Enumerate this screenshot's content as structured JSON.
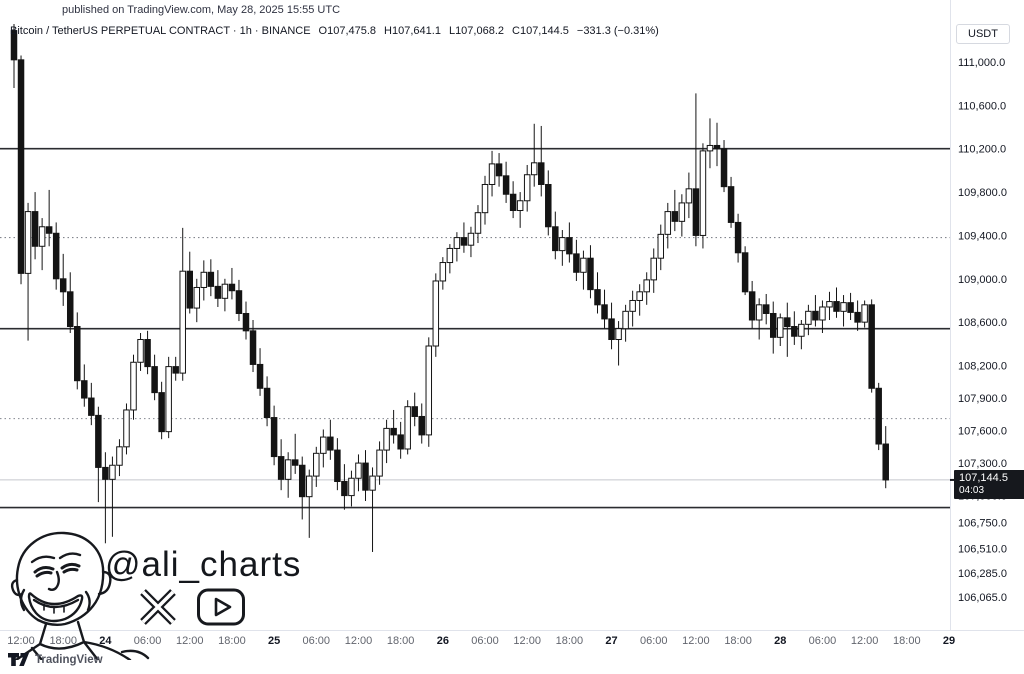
{
  "published_note": {
    "text": "published on TradingView.com, May 28, 2025 15:55 UTC"
  },
  "header": {
    "symbol": "Bitcoin / TetherUS PERPETUAL CONTRACT · 1h · BINANCE",
    "ohlc": [
      {
        "label": "O",
        "value": "107,475.8"
      },
      {
        "label": "H",
        "value": "107,641.1"
      },
      {
        "label": "L",
        "value": "107,068.2"
      },
      {
        "label": "C",
        "value": "107,144.5"
      }
    ],
    "change": "−331.3 (−0.31%)"
  },
  "price_scale": {
    "currency": "USDT",
    "last_price_label": "107,144.5",
    "countdown": "04:03",
    "ticks": [
      {
        "label": "111,000.0",
        "value": 111000
      },
      {
        "label": "110,600.0",
        "value": 110600
      },
      {
        "label": "110,200.0",
        "value": 110200
      },
      {
        "label": "109,800.0",
        "value": 109800
      },
      {
        "label": "109,400.0",
        "value": 109400
      },
      {
        "label": "109,000.0",
        "value": 109000
      },
      {
        "label": "108,600.0",
        "value": 108600
      },
      {
        "label": "108,200.0",
        "value": 108200
      },
      {
        "label": "107,900.0",
        "value": 107900
      },
      {
        "label": "107,600.0",
        "value": 107600
      },
      {
        "label": "107,300.0",
        "value": 107300
      },
      {
        "label": "107,000.0",
        "value": 107000
      },
      {
        "label": "106,750.0",
        "value": 106750
      },
      {
        "label": "106,510.0",
        "value": 106510
      },
      {
        "label": "106,285.0",
        "value": 106285
      },
      {
        "label": "106,065.0",
        "value": 106065
      }
    ]
  },
  "time_scale": {
    "ticks": [
      {
        "label": "12:00",
        "i": 1,
        "day": false
      },
      {
        "label": "18:00",
        "i": 7,
        "day": false
      },
      {
        "label": "24",
        "i": 13,
        "day": true
      },
      {
        "label": "06:00",
        "i": 19,
        "day": false
      },
      {
        "label": "12:00",
        "i": 25,
        "day": false
      },
      {
        "label": "18:00",
        "i": 31,
        "day": false
      },
      {
        "label": "25",
        "i": 37,
        "day": true
      },
      {
        "label": "06:00",
        "i": 43,
        "day": false
      },
      {
        "label": "12:00",
        "i": 49,
        "day": false
      },
      {
        "label": "18:00",
        "i": 55,
        "day": false
      },
      {
        "label": "26",
        "i": 61,
        "day": true
      },
      {
        "label": "06:00",
        "i": 67,
        "day": false
      },
      {
        "label": "12:00",
        "i": 73,
        "day": false
      },
      {
        "label": "18:00",
        "i": 79,
        "day": false
      },
      {
        "label": "27",
        "i": 85,
        "day": true
      },
      {
        "label": "06:00",
        "i": 91,
        "day": false
      },
      {
        "label": "12:00",
        "i": 97,
        "day": false
      },
      {
        "label": "18:00",
        "i": 103,
        "day": false
      },
      {
        "label": "28",
        "i": 109,
        "day": true
      },
      {
        "label": "06:00",
        "i": 115,
        "day": false
      },
      {
        "label": "12:00",
        "i": 121,
        "day": false
      },
      {
        "label": "18:00",
        "i": 127,
        "day": false
      },
      {
        "label": "29",
        "i": 133,
        "day": true
      }
    ]
  },
  "watermark": {
    "handle": "@ali_charts",
    "face": "line-art smiling bald man portrait",
    "icons": [
      {
        "name": "x-logo"
      },
      {
        "name": "youtube-logo"
      }
    ]
  },
  "footer": {
    "brand": "TradingView"
  },
  "colors": {
    "background": "#ffffff",
    "candle_up_fill": "#ffffff",
    "candle_down_fill": "#141414",
    "candle_border": "#141414",
    "level_solid": "#2b2c30",
    "level_dotted": "#83868e",
    "last_price_line": "#c5c8ce",
    "badge_bg": "#16181d",
    "badge_text": "#ffffff",
    "axis_border": "#e0e3eb",
    "label_dark": "#131722",
    "label_gray": "#62656e"
  },
  "chart_data": {
    "type": "candlestick",
    "title": "Bitcoin / TetherUS PERPETUAL CONTRACT",
    "exchange": "BINANCE",
    "interval": "1h",
    "quote_currency": "USDT",
    "start_time": "2025-05-23 11:00 UTC",
    "end_time": "2025-05-28 15:00 UTC (in progress, closes in 04:03)",
    "ylim": [
      105800,
      111570
    ],
    "grid": false,
    "last_price": 107144.5,
    "last_candle_ohlc": {
      "open": 107475.8,
      "high": 107641.1,
      "low": 107068.2,
      "close": 107144.5
    },
    "change": -331.3,
    "change_pct": -0.31,
    "levels_solid": [
      110200,
      108540,
      106890
    ],
    "levels_dotted": [
      109380,
      107710
    ],
    "candles": [
      [
        111290,
        111350,
        110760,
        111020
      ],
      [
        111020,
        111060,
        108950,
        109050
      ],
      [
        109050,
        109700,
        108430,
        109620
      ],
      [
        109620,
        109800,
        109180,
        109300
      ],
      [
        109300,
        109560,
        109080,
        109480
      ],
      [
        109480,
        109820,
        109300,
        109420
      ],
      [
        109420,
        109520,
        108900,
        109000
      ],
      [
        109000,
        109230,
        108750,
        108880
      ],
      [
        108880,
        109060,
        108500,
        108560
      ],
      [
        108560,
        108690,
        107980,
        108060
      ],
      [
        108060,
        108210,
        107820,
        107900
      ],
      [
        107900,
        108040,
        107650,
        107740
      ],
      [
        107740,
        107820,
        106940,
        107260
      ],
      [
        107260,
        107400,
        106560,
        107150
      ],
      [
        107150,
        107360,
        106620,
        107280
      ],
      [
        107280,
        107520,
        107180,
        107450
      ],
      [
        107450,
        107850,
        107380,
        107790
      ],
      [
        107790,
        108300,
        107700,
        108230
      ],
      [
        108230,
        108500,
        108150,
        108440
      ],
      [
        108440,
        108520,
        108120,
        108190
      ],
      [
        108190,
        108300,
        107880,
        107950
      ],
      [
        107950,
        108050,
        107520,
        107590
      ],
      [
        107590,
        108280,
        107530,
        108190
      ],
      [
        108190,
        108280,
        108060,
        108130
      ],
      [
        108130,
        109470,
        108060,
        109070
      ],
      [
        109070,
        109250,
        108680,
        108730
      ],
      [
        108730,
        109000,
        108600,
        108920
      ],
      [
        108920,
        109170,
        108800,
        109060
      ],
      [
        109060,
        109180,
        108840,
        108930
      ],
      [
        108930,
        109080,
        108740,
        108820
      ],
      [
        108820,
        109000,
        108700,
        108950
      ],
      [
        108950,
        109100,
        108810,
        108890
      ],
      [
        108890,
        108990,
        108610,
        108680
      ],
      [
        108680,
        108790,
        108440,
        108520
      ],
      [
        108520,
        108620,
        108140,
        108210
      ],
      [
        108210,
        108360,
        107920,
        107990
      ],
      [
        107990,
        108100,
        107640,
        107720
      ],
      [
        107720,
        107830,
        107280,
        107360
      ],
      [
        107360,
        107520,
        107050,
        107150
      ],
      [
        107150,
        107400,
        106980,
        107330
      ],
      [
        107330,
        107570,
        107200,
        107280
      ],
      [
        107280,
        107360,
        106780,
        106990
      ],
      [
        106990,
        107240,
        106610,
        107180
      ],
      [
        107180,
        107450,
        107080,
        107390
      ],
      [
        107390,
        107610,
        107260,
        107540
      ],
      [
        107540,
        107700,
        107330,
        107420
      ],
      [
        107420,
        107530,
        107050,
        107130
      ],
      [
        107130,
        107290,
        106870,
        107000
      ],
      [
        107000,
        107230,
        106900,
        107160
      ],
      [
        107160,
        107380,
        107040,
        107300
      ],
      [
        107300,
        107420,
        106950,
        107050
      ],
      [
        107050,
        107260,
        106480,
        107180
      ],
      [
        107180,
        107500,
        107100,
        107420
      ],
      [
        107420,
        107700,
        107300,
        107620
      ],
      [
        107620,
        107790,
        107480,
        107560
      ],
      [
        107560,
        107680,
        107340,
        107430
      ],
      [
        107430,
        107880,
        107380,
        107820
      ],
      [
        107820,
        107950,
        107640,
        107730
      ],
      [
        107730,
        107850,
        107480,
        107560
      ],
      [
        107560,
        108460,
        107450,
        108380
      ],
      [
        108380,
        109050,
        108280,
        108980
      ],
      [
        108980,
        109200,
        108900,
        109150
      ],
      [
        109150,
        109320,
        109050,
        109280
      ],
      [
        109280,
        109430,
        109160,
        109380
      ],
      [
        109380,
        109520,
        109240,
        109310
      ],
      [
        109310,
        109480,
        109200,
        109420
      ],
      [
        109420,
        109680,
        109330,
        109610
      ],
      [
        109610,
        109950,
        109500,
        109870
      ],
      [
        109870,
        110180,
        109760,
        110060
      ],
      [
        110060,
        110160,
        109850,
        109950
      ],
      [
        109950,
        110080,
        109700,
        109780
      ],
      [
        109780,
        109900,
        109560,
        109630
      ],
      [
        109630,
        109800,
        109470,
        109720
      ],
      [
        109720,
        110050,
        109620,
        109960
      ],
      [
        109960,
        110430,
        109850,
        110070
      ],
      [
        110070,
        110410,
        109760,
        109870
      ],
      [
        109870,
        110000,
        109400,
        109480
      ],
      [
        109480,
        109620,
        109180,
        109260
      ],
      [
        109260,
        109450,
        109120,
        109380
      ],
      [
        109380,
        109520,
        109150,
        109230
      ],
      [
        109230,
        109360,
        108980,
        109060
      ],
      [
        109060,
        109260,
        108900,
        109190
      ],
      [
        109190,
        109310,
        108820,
        108900
      ],
      [
        108900,
        109060,
        108680,
        108760
      ],
      [
        108760,
        108900,
        108540,
        108630
      ],
      [
        108630,
        108780,
        108350,
        108440
      ],
      [
        108440,
        108610,
        108200,
        108540
      ],
      [
        108540,
        108760,
        108420,
        108700
      ],
      [
        108700,
        108890,
        108560,
        108800
      ],
      [
        108800,
        108950,
        108660,
        108880
      ],
      [
        108880,
        109060,
        108760,
        108990
      ],
      [
        108990,
        109280,
        108870,
        109190
      ],
      [
        109190,
        109500,
        109080,
        109410
      ],
      [
        109410,
        109700,
        109280,
        109620
      ],
      [
        109620,
        109820,
        109440,
        109530
      ],
      [
        109530,
        109780,
        109390,
        109700
      ],
      [
        109700,
        109980,
        109560,
        109830
      ],
      [
        109830,
        110710,
        109300,
        109400
      ],
      [
        109400,
        110250,
        109280,
        110180
      ],
      [
        110180,
        110480,
        110020,
        110230
      ],
      [
        110230,
        110440,
        110040,
        110200
      ],
      [
        110200,
        110280,
        109800,
        109850
      ],
      [
        109850,
        109940,
        109470,
        109520
      ],
      [
        109520,
        109600,
        109150,
        109240
      ],
      [
        109240,
        109300,
        108850,
        108880
      ],
      [
        108880,
        108980,
        108540,
        108620
      ],
      [
        108620,
        108820,
        108440,
        108760
      ],
      [
        108760,
        108860,
        108580,
        108680
      ],
      [
        108680,
        108790,
        108310,
        108460
      ],
      [
        108460,
        108680,
        108380,
        108640
      ],
      [
        108640,
        108780,
        108280,
        108560
      ],
      [
        108560,
        108700,
        108390,
        108470
      ],
      [
        108470,
        108620,
        108350,
        108580
      ],
      [
        108580,
        108760,
        108480,
        108700
      ],
      [
        108700,
        108850,
        108560,
        108620
      ],
      [
        108620,
        108800,
        108500,
        108740
      ],
      [
        108740,
        108880,
        108620,
        108790
      ],
      [
        108790,
        108920,
        108640,
        108700
      ],
      [
        108700,
        108850,
        108560,
        108780
      ],
      [
        108780,
        108870,
        108620,
        108690
      ],
      [
        108690,
        108800,
        108520,
        108600
      ],
      [
        108600,
        108800,
        108550,
        108760
      ],
      [
        108760,
        108810,
        107950,
        107990
      ],
      [
        107990,
        108040,
        107420,
        107475.8
      ],
      [
        107475.8,
        107641.1,
        107068.2,
        107144.5
      ]
    ]
  }
}
